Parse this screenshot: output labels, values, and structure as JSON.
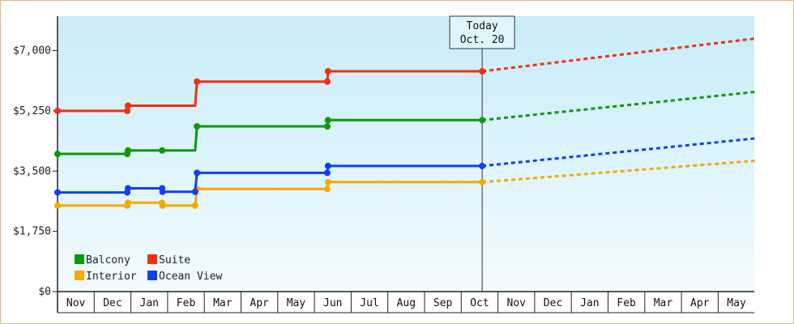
{
  "chart_data": {
    "type": "line",
    "x_categories": [
      "Nov",
      "Dec",
      "Jan",
      "Feb",
      "Mar",
      "Apr",
      "May",
      "Jun",
      "Jul",
      "Aug",
      "Sep",
      "Oct",
      "Nov",
      "Dec",
      "Jan",
      "Feb",
      "Mar",
      "Apr",
      "May"
    ],
    "ylim": [
      0,
      8000
    ],
    "yticks": [
      0,
      1750,
      3500,
      5250,
      7000
    ],
    "ytick_labels": [
      "$0",
      "$1,750",
      "$3,500",
      "$5,250",
      "$7,000"
    ],
    "today_marker": {
      "line1": "Today",
      "line2": "Oct. 20",
      "x": 11.57
    },
    "legend": {
      "placement": "bottom-left",
      "columns": 2
    },
    "series": [
      {
        "name": "Balcony",
        "color": "#0a9a0a",
        "points": [
          [
            0,
            4000
          ],
          [
            1.9,
            4000
          ],
          [
            1.9,
            4050
          ],
          [
            1.92,
            4100
          ],
          [
            2.85,
            4100
          ],
          [
            2.85,
            4080
          ],
          [
            2.86,
            4100
          ],
          [
            3.75,
            4100
          ],
          [
            3.8,
            4800
          ],
          [
            7.35,
            4800
          ],
          [
            7.37,
            4980
          ],
          [
            11.57,
            4980
          ]
        ],
        "markers": [
          [
            0,
            4000
          ],
          [
            1.9,
            4000
          ],
          [
            1.92,
            4100
          ],
          [
            2.85,
            4100
          ],
          [
            3.8,
            4800
          ],
          [
            7.35,
            4800
          ],
          [
            7.37,
            4980
          ],
          [
            11.57,
            4980
          ]
        ],
        "forecast": [
          [
            11.57,
            4980
          ],
          [
            19,
            5800
          ]
        ]
      },
      {
        "name": "Suite",
        "color": "#f03010",
        "points": [
          [
            0,
            5250
          ],
          [
            1.9,
            5250
          ],
          [
            1.92,
            5400
          ],
          [
            3.75,
            5400
          ],
          [
            3.8,
            6100
          ],
          [
            7.35,
            6100
          ],
          [
            7.37,
            6400
          ],
          [
            11.57,
            6400
          ]
        ],
        "markers": [
          [
            0,
            5250
          ],
          [
            1.9,
            5250
          ],
          [
            1.92,
            5400
          ],
          [
            3.8,
            6100
          ],
          [
            7.35,
            6100
          ],
          [
            7.37,
            6400
          ],
          [
            11.57,
            6400
          ]
        ],
        "forecast": [
          [
            11.57,
            6400
          ],
          [
            19,
            7350
          ]
        ]
      },
      {
        "name": "Interior",
        "color": "#f8a800",
        "points": [
          [
            0,
            2500
          ],
          [
            1.9,
            2500
          ],
          [
            1.92,
            2580
          ],
          [
            2.85,
            2580
          ],
          [
            2.86,
            2500
          ],
          [
            3.75,
            2500
          ],
          [
            3.8,
            2980
          ],
          [
            7.35,
            2980
          ],
          [
            7.37,
            3180
          ],
          [
            11.57,
            3180
          ]
        ],
        "markers": [
          [
            0,
            2500
          ],
          [
            1.9,
            2500
          ],
          [
            1.92,
            2580
          ],
          [
            2.85,
            2580
          ],
          [
            2.86,
            2500
          ],
          [
            3.75,
            2500
          ],
          [
            3.8,
            2980
          ],
          [
            7.35,
            2980
          ],
          [
            7.37,
            3180
          ],
          [
            11.57,
            3180
          ]
        ],
        "forecast": [
          [
            11.57,
            3180
          ],
          [
            19,
            3800
          ]
        ]
      },
      {
        "name": "Ocean View",
        "color": "#1040f0",
        "points": [
          [
            0,
            2880
          ],
          [
            1.9,
            2880
          ],
          [
            1.92,
            3000
          ],
          [
            2.85,
            3000
          ],
          [
            2.86,
            2900
          ],
          [
            3.75,
            2900
          ],
          [
            3.8,
            3450
          ],
          [
            7.35,
            3450
          ],
          [
            7.37,
            3650
          ],
          [
            11.57,
            3650
          ]
        ],
        "markers": [
          [
            0,
            2880
          ],
          [
            1.9,
            2880
          ],
          [
            1.92,
            3000
          ],
          [
            2.85,
            3000
          ],
          [
            2.86,
            2900
          ],
          [
            3.75,
            2900
          ],
          [
            3.8,
            3450
          ],
          [
            7.35,
            3450
          ],
          [
            7.37,
            3650
          ],
          [
            11.57,
            3650
          ]
        ],
        "forecast": [
          [
            11.57,
            3650
          ],
          [
            19,
            4450
          ]
        ]
      }
    ]
  },
  "colors": {
    "plot_bg_top": "#c8ecf8",
    "plot_bg_bottom": "#f2fbff",
    "border": "#e8b878",
    "axis": "#222222",
    "today_box_fill": "#e0f4fc"
  }
}
